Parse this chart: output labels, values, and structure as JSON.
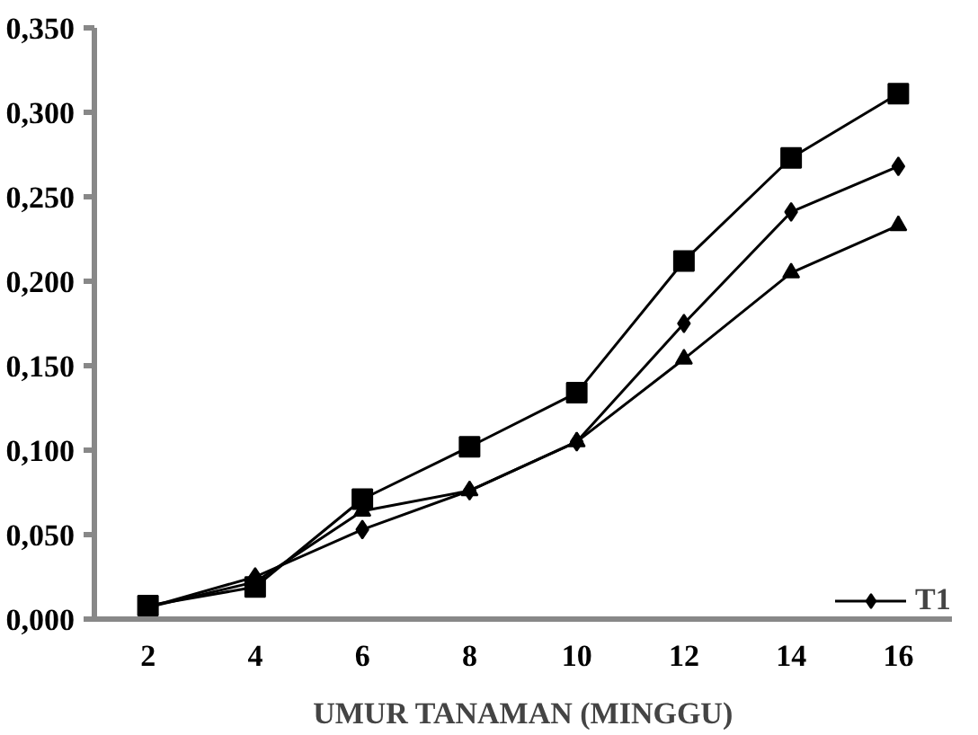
{
  "chart_data": {
    "type": "line",
    "xlabel": "UMUR TANAMAN (MINGGU)",
    "categories": [
      "2",
      "4",
      "6",
      "8",
      "10",
      "12",
      "14",
      "16"
    ],
    "series": [
      {
        "color": "#000000",
        "marker": "square",
        "values": [
          0.008,
          0.019,
          0.071,
          0.102,
          0.134,
          0.212,
          0.273,
          0.311
        ]
      },
      {
        "name": "T1",
        "color": "#000000",
        "marker": "diamond",
        "values": [
          0.007,
          0.025,
          0.053,
          0.076,
          0.105,
          0.175,
          0.241,
          0.268
        ]
      },
      {
        "color": "#000000",
        "marker": "triangle",
        "values": [
          0.007,
          0.022,
          0.064,
          0.076,
          0.105,
          0.154,
          0.205,
          0.233
        ]
      }
    ],
    "ylim": [
      0,
      0.35
    ],
    "yticks": [
      {
        "value": 0,
        "label": "0,000"
      },
      {
        "value": 0.05,
        "label": "0,050"
      },
      {
        "value": 0.1,
        "label": "0,100"
      },
      {
        "value": 0.15,
        "label": "0,150"
      },
      {
        "value": 0.2,
        "label": "0,200"
      },
      {
        "value": 0.25,
        "label": "0,250"
      },
      {
        "value": 0.3,
        "label": "0,300"
      },
      {
        "value": 0.35,
        "label": "0,350"
      }
    ],
    "grid": false,
    "legend": "bottom right",
    "line_style": "solid"
  }
}
